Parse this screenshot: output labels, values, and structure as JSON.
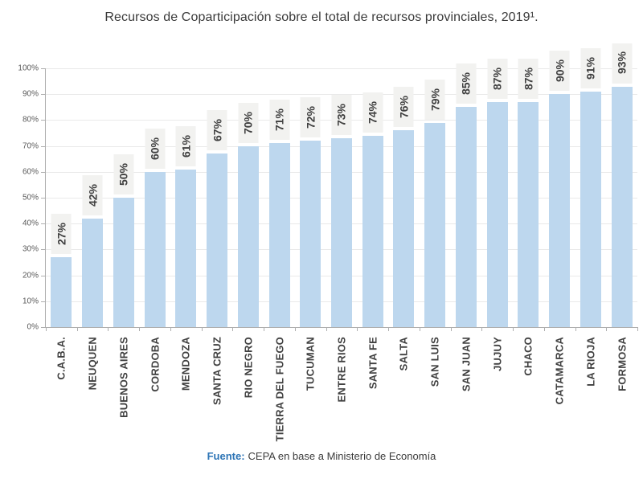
{
  "chart_data": {
    "type": "bar",
    "title": "Recursos de Coparticipación sobre el total de recursos provinciales, 2019¹.",
    "categories": [
      "C.A.B.A.",
      "NEUQUEN",
      "BUENOS AIRES",
      "CORDOBA",
      "MENDOZA",
      "SANTA CRUZ",
      "RIO NEGRO",
      "TIERRA DEL FUEGO",
      "TUCUMAN",
      "ENTRE RIOS",
      "SANTA FE",
      "SALTA",
      "SAN LUIS",
      "SAN JUAN",
      "JUJUY",
      "CHACO",
      "CATAMARCA",
      "LA RIOJA",
      "FORMOSA"
    ],
    "values": [
      27,
      42,
      50,
      60,
      61,
      67,
      70,
      71,
      72,
      73,
      74,
      76,
      79,
      85,
      87,
      87,
      90,
      91,
      93
    ],
    "data_labels": [
      "27%",
      "42%",
      "50%",
      "60%",
      "61%",
      "67%",
      "70%",
      "71%",
      "72%",
      "73%",
      "74%",
      "76%",
      "79%",
      "85%",
      "87%",
      "87%",
      "90%",
      "91%",
      "93%"
    ],
    "xlabel": "",
    "ylabel": "",
    "ylim": [
      0,
      100
    ],
    "ytick_step": 10,
    "ytick_labels": [
      "0%",
      "10%",
      "20%",
      "30%",
      "40%",
      "50%",
      "60%",
      "70%",
      "80%",
      "90%",
      "100%"
    ],
    "grid": true,
    "legend": "none",
    "bar_label_rotation": "vertical-bottom-to-top",
    "category_label_rotation": "vertical-bottom-to-top",
    "colors": {
      "bar": "#BDD7EE",
      "label_box": "#F2F2F0",
      "gridline": "#E9E9E9",
      "axis": "#AFAFAF",
      "text": "#404040",
      "tick_text": "#595959",
      "source_accent": "#2E75B6"
    }
  },
  "footer": {
    "source_label": "Fuente:",
    "source_text": "CEPA en base a Ministerio de Economía"
  }
}
